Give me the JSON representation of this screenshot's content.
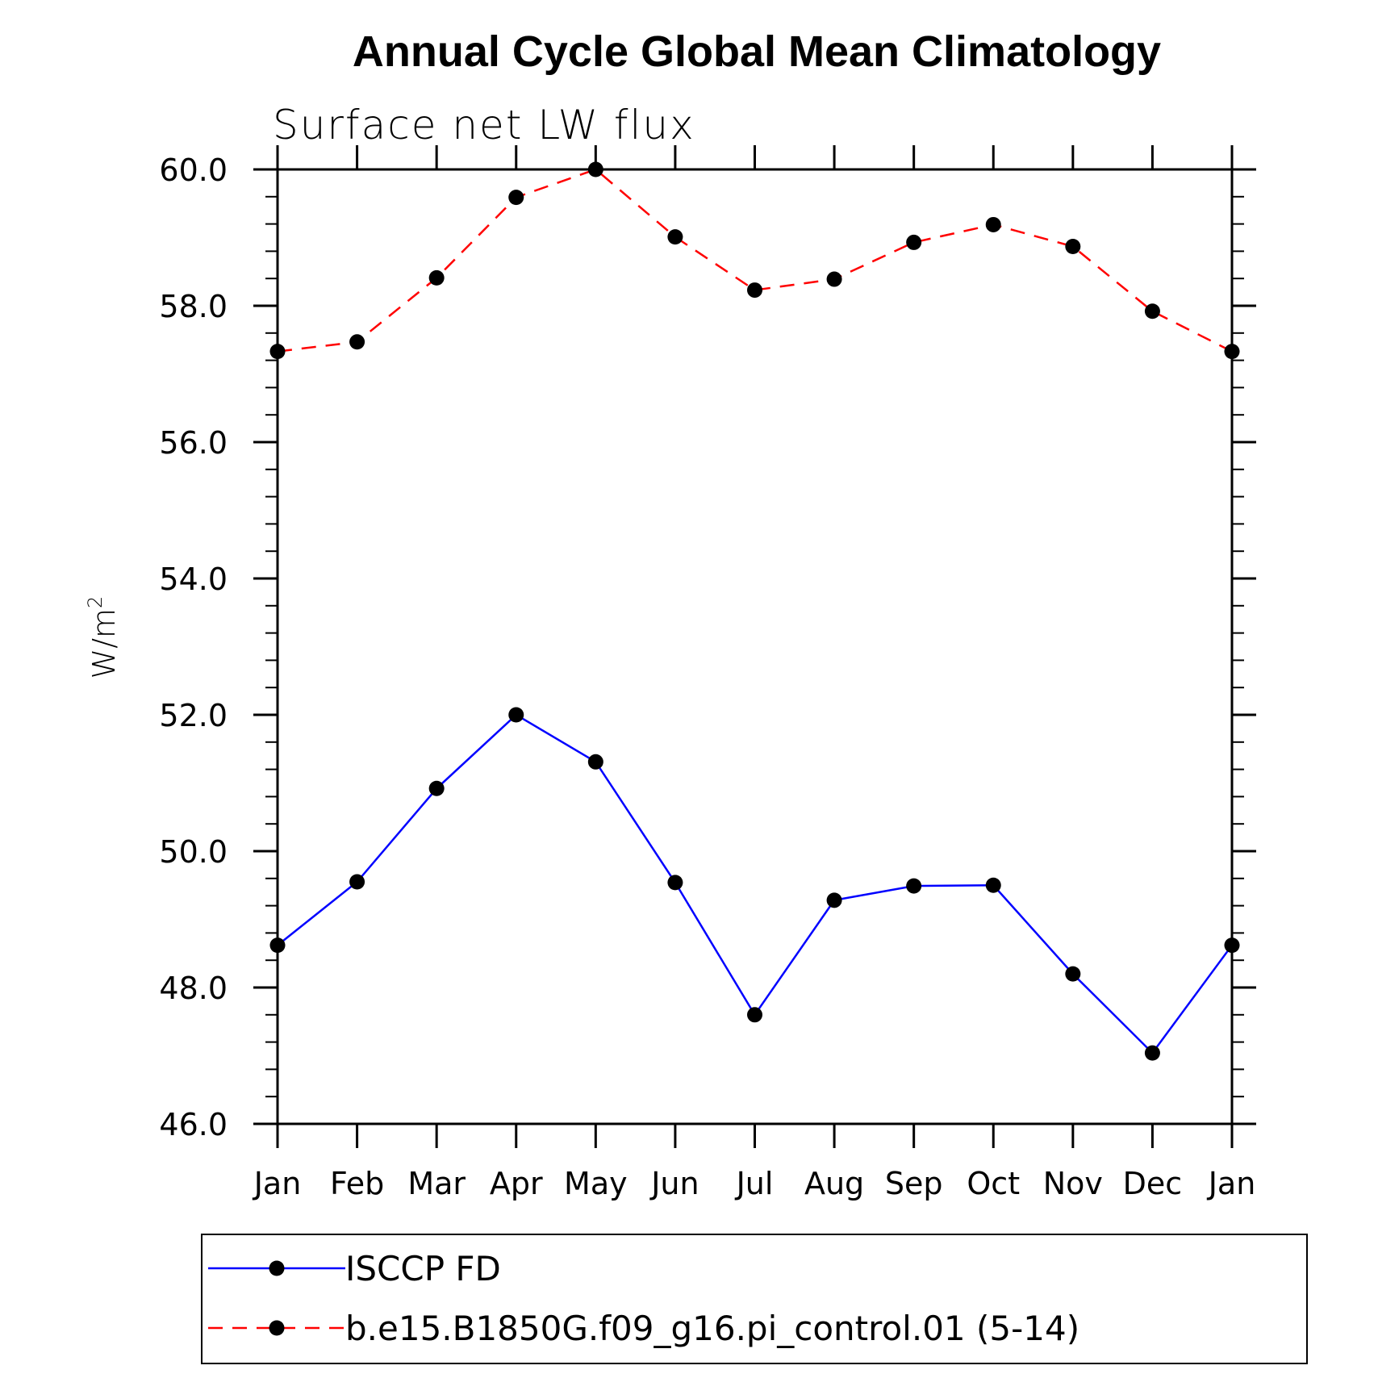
{
  "chart_data": {
    "type": "line",
    "title": "Annual Cycle Global Mean Climatology",
    "subtitle": "Surface net LW flux",
    "ylabel": "W/m",
    "ylabel_superscript": "2",
    "xlabel": "",
    "categories": [
      "Jan",
      "Feb",
      "Mar",
      "Apr",
      "May",
      "Jun",
      "Jul",
      "Aug",
      "Sep",
      "Oct",
      "Nov",
      "Dec",
      "Jan"
    ],
    "ylim": [
      46.0,
      60.0
    ],
    "yticks": [
      "46.0",
      "48.0",
      "50.0",
      "52.0",
      "54.0",
      "56.0",
      "58.0",
      "60.0"
    ],
    "series": [
      {
        "name": "ISCCP FD",
        "color": "#0000ff",
        "dash": "solid",
        "values": [
          48.62,
          49.55,
          50.92,
          52.0,
          51.31,
          49.54,
          47.6,
          49.28,
          49.49,
          49.5,
          48.2,
          47.04,
          48.62
        ]
      },
      {
        "name": "b.e15.B1850G.f09_g16.pi_control.01 (5-14)",
        "color": "#ff0000",
        "dash": "dashed",
        "values": [
          57.33,
          57.47,
          58.41,
          59.59,
          60.0,
          59.01,
          58.23,
          58.39,
          58.93,
          59.19,
          58.87,
          57.92,
          57.33
        ]
      }
    ],
    "legend_position": "bottom"
  }
}
